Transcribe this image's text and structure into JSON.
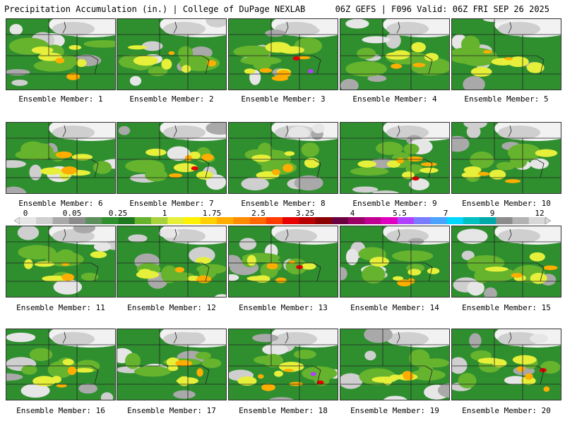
{
  "header": {
    "left_title": "Precipitation Accumulation (in.) | College of DuPage NEXLAB",
    "right_title": "06Z GEFS | F096 Valid: 06Z FRI SEP 26 2025"
  },
  "legend": {
    "ticks": [
      "0",
      "0.05",
      "0.25",
      "1",
      "1.75",
      "2.5",
      "3.25",
      "4",
      "5.5",
      "7",
      "9",
      "12"
    ],
    "colors": [
      "#e6e6e6",
      "#cfcfcf",
      "#a9a9a9",
      "#8c8c8c",
      "#5d8f5d",
      "#2f8f2f",
      "#1f7a1f",
      "#66b32e",
      "#a8d23b",
      "#e6f03a",
      "#fff200",
      "#ffd000",
      "#ffae00",
      "#ff8c00",
      "#ff6a00",
      "#ff3c00",
      "#e60000",
      "#b80000",
      "#8b0000",
      "#6a0040",
      "#9b0064",
      "#c00090",
      "#e000c0",
      "#b040ff",
      "#7a7cff",
      "#4aa3ff",
      "#00d7ff",
      "#00c0c0",
      "#00a8a8",
      "#8c8c8c",
      "#b3b3b3",
      "#d8d8d8"
    ]
  },
  "members": [
    {
      "label": "Ensemble Member: 1",
      "intensity": 2
    },
    {
      "label": "Ensemble Member: 2",
      "intensity": 2
    },
    {
      "label": "Ensemble Member: 3",
      "intensity": 4
    },
    {
      "label": "Ensemble Member: 4",
      "intensity": 2
    },
    {
      "label": "Ensemble Member: 5",
      "intensity": 2
    },
    {
      "label": "Ensemble Member: 6",
      "intensity": 2
    },
    {
      "label": "Ensemble Member: 7",
      "intensity": 3
    },
    {
      "label": "Ensemble Member: 8",
      "intensity": 2
    },
    {
      "label": "Ensemble Member: 9",
      "intensity": 3
    },
    {
      "label": "Ensemble Member: 10",
      "intensity": 2
    },
    {
      "label": "Ensemble Member: 11",
      "intensity": 2
    },
    {
      "label": "Ensemble Member: 12",
      "intensity": 2
    },
    {
      "label": "Ensemble Member: 13",
      "intensity": 3
    },
    {
      "label": "Ensemble Member: 14",
      "intensity": 2
    },
    {
      "label": "Ensemble Member: 15",
      "intensity": 2
    },
    {
      "label": "Ensemble Member: 16",
      "intensity": 2
    },
    {
      "label": "Ensemble Member: 17",
      "intensity": 2
    },
    {
      "label": "Ensemble Member: 18",
      "intensity": 4
    },
    {
      "label": "Ensemble Member: 19",
      "intensity": 2
    },
    {
      "label": "Ensemble Member: 20",
      "intensity": 3
    }
  ]
}
